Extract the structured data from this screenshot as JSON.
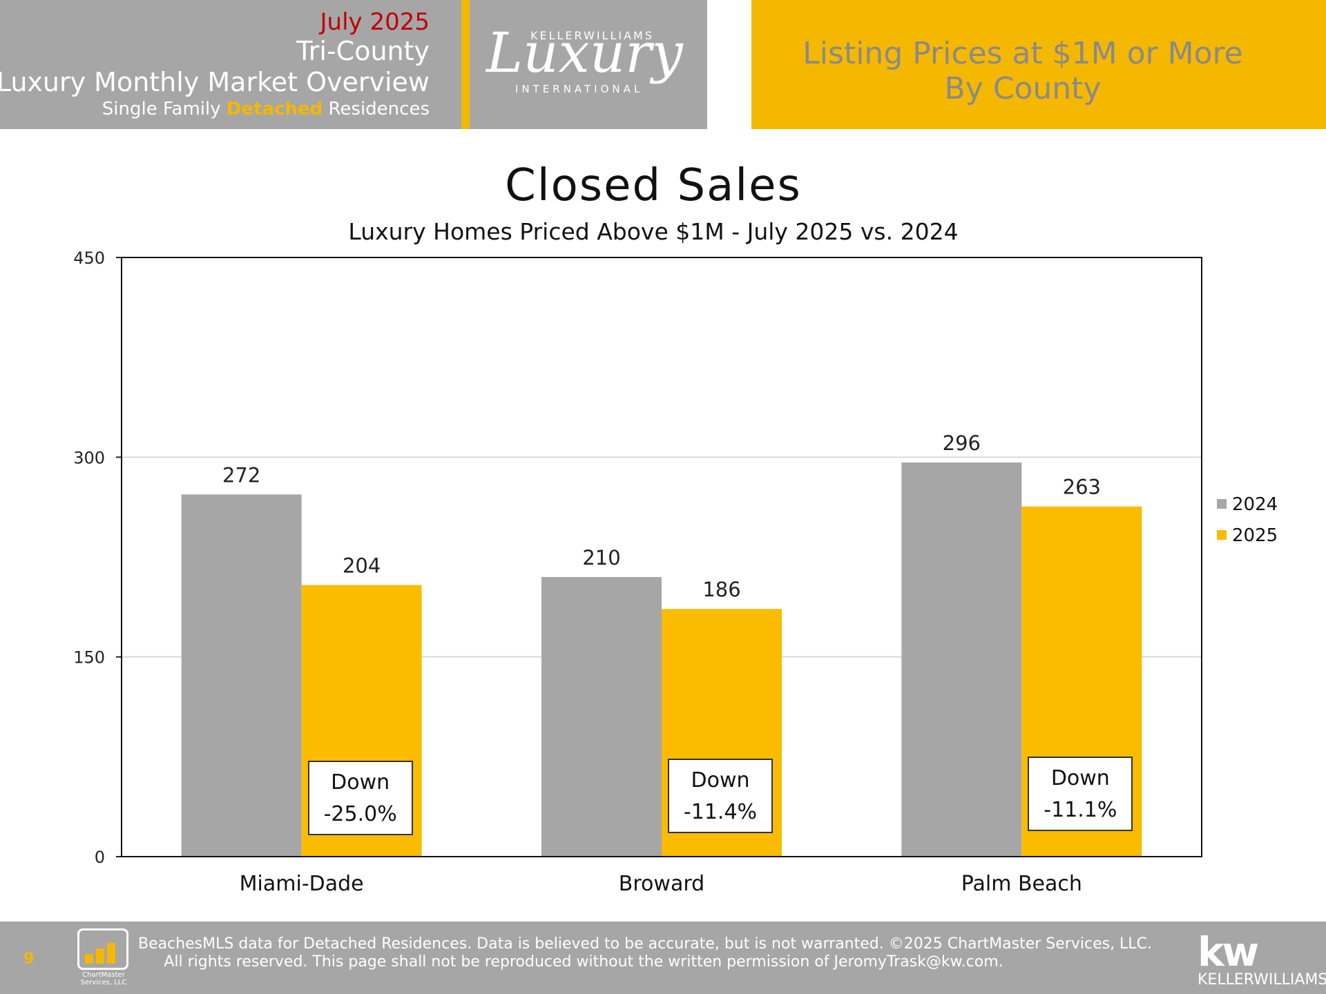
{
  "header": {
    "date": "July 2025",
    "region": "Tri-County",
    "report_title": "Luxury Monthly Market Overview",
    "segment_prefix": "Single Family",
    "segment_highlight": "Detached",
    "segment_suffix": "Residences",
    "logo_top": "KELLERWILLIAMS",
    "logo_main": "Luxury",
    "logo_bottom": "INTERNATIONAL",
    "banner_line1": "Listing Prices at $1M or More",
    "banner_line2": "By County"
  },
  "chart_data": {
    "type": "bar",
    "title": "Closed Sales",
    "subtitle": "Luxury Homes Priced Above $1M - July 2025 vs. 2024",
    "categories": [
      "Miami-Dade",
      "Broward",
      "Palm Beach"
    ],
    "series": [
      {
        "name": "2024",
        "values": [
          272,
          210,
          296
        ],
        "color": "#a6a6a6"
      },
      {
        "name": "2025",
        "values": [
          204,
          186,
          263
        ],
        "color": "#fbbc00"
      }
    ],
    "ylim": [
      0,
      450
    ],
    "yticks": [
      0,
      150,
      300,
      450
    ],
    "grid": true,
    "legend": "right",
    "annotations": [
      {
        "category": "Miami-Dade",
        "label": "Down",
        "value": "-25.0%"
      },
      {
        "category": "Broward",
        "label": "Down",
        "value": "-11.4%"
      },
      {
        "category": "Palm Beach",
        "label": "Down",
        "value": "-11.1%"
      }
    ]
  },
  "footer": {
    "page_number": "9",
    "logo_text": "ChartMaster Services, LLC",
    "disclaimer_line1": "BeachesMLS data for Detached Residences.  Data is believed to be accurate, but is not warranted.   ©2025  ChartMaster Services, LLC.",
    "disclaimer_line2": "All rights reserved. This page shall not be reproduced without the written permission of JeromyTrask@kw.com.",
    "kw_logo": "kw",
    "kw_name": "KELLERWILLIAMS."
  }
}
